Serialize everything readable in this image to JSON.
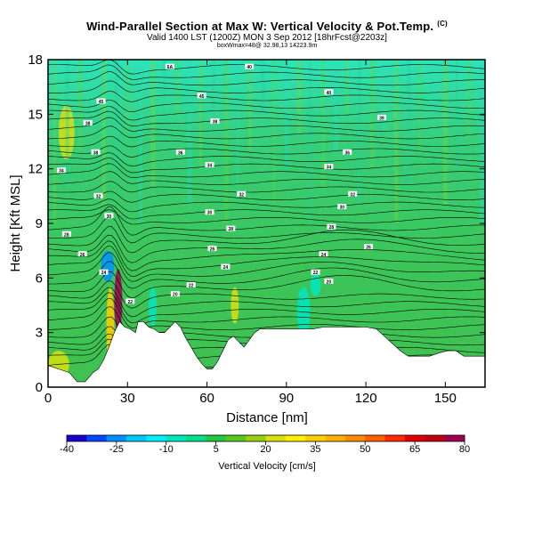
{
  "header": {
    "title": "Wind-Parallel Section at Max W: Vertical Velocity & Pot.Temp.",
    "copyright": "(C)",
    "valid_line": "Valid 1400 LST (1200Z) MON 3 Sep 2012 [18hrFcst@2203z]",
    "box_line": "boxWmax=48@ 32.98,13 14223.9m"
  },
  "chart_data": {
    "type": "heatmap",
    "title": "Wind-Parallel Section at Max W: Vertical Velocity & Pot.Temp.",
    "xlabel": "Distance [nm]",
    "ylabel": "Height [Kft MSL]",
    "xlim": [
      0,
      165
    ],
    "ylim": [
      0,
      18
    ],
    "xticks": [
      "0",
      "30",
      "60",
      "90",
      "120",
      "150"
    ],
    "xtick_values": [
      0,
      30,
      60,
      90,
      120,
      150
    ],
    "yticks": [
      "0",
      "3",
      "6",
      "9",
      "12",
      "15",
      "18"
    ],
    "ytick_values": [
      0,
      3,
      6,
      9,
      12,
      15,
      18
    ],
    "terrain_kft": [
      [
        0,
        1.2
      ],
      [
        4,
        1.0
      ],
      [
        8,
        0.8
      ],
      [
        11,
        0.3
      ],
      [
        14,
        0.3
      ],
      [
        17,
        0.8
      ],
      [
        19,
        1.0
      ],
      [
        21,
        1.5
      ],
      [
        23,
        2.2
      ],
      [
        25,
        3.0
      ],
      [
        27,
        3.6
      ],
      [
        29,
        3.3
      ],
      [
        31,
        3.2
      ],
      [
        33,
        3.0
      ],
      [
        34,
        3.6
      ],
      [
        36,
        3.6
      ],
      [
        38,
        3.3
      ],
      [
        40,
        3.2
      ],
      [
        42,
        3.0
      ],
      [
        44,
        3.0
      ],
      [
        46,
        3.3
      ],
      [
        48,
        3.6
      ],
      [
        50,
        3.3
      ],
      [
        52,
        2.7
      ],
      [
        54,
        2.2
      ],
      [
        56,
        1.7
      ],
      [
        58,
        1.3
      ],
      [
        60,
        1.0
      ],
      [
        62,
        1.0
      ],
      [
        64,
        1.4
      ],
      [
        66,
        2.0
      ],
      [
        68,
        2.6
      ],
      [
        70,
        2.8
      ],
      [
        72,
        2.5
      ],
      [
        74,
        2.2
      ],
      [
        76,
        2.6
      ],
      [
        78,
        3.0
      ],
      [
        80,
        3.2
      ],
      [
        84,
        3.2
      ],
      [
        88,
        3.2
      ],
      [
        92,
        3.2
      ],
      [
        96,
        3.2
      ],
      [
        100,
        3.2
      ],
      [
        104,
        3.3
      ],
      [
        108,
        3.3
      ],
      [
        112,
        3.3
      ],
      [
        116,
        3.3
      ],
      [
        120,
        3.3
      ],
      [
        124,
        3.2
      ],
      [
        127,
        2.8
      ],
      [
        130,
        2.4
      ],
      [
        133,
        2.0
      ],
      [
        136,
        1.7
      ],
      [
        140,
        1.7
      ],
      [
        144,
        1.7
      ],
      [
        148,
        1.9
      ],
      [
        151,
        2.0
      ],
      [
        154,
        2.0
      ],
      [
        157,
        1.7
      ],
      [
        161,
        1.7
      ],
      [
        165,
        1.7
      ]
    ],
    "vertical_velocity_cells": [
      {
        "x": [
          0,
          8
        ],
        "y": [
          0.5,
          2.0
        ],
        "w": 20
      },
      {
        "x": [
          22,
          25
        ],
        "y": [
          1.0,
          5.5
        ],
        "w": 35
      },
      {
        "x": [
          25,
          28
        ],
        "y": [
          3.0,
          6.5
        ],
        "w": 80
      },
      {
        "x": [
          20,
          25
        ],
        "y": [
          5.8,
          7.5
        ],
        "w": -25
      },
      {
        "x": [
          38,
          41
        ],
        "y": [
          3.3,
          5.5
        ],
        "w": -10
      },
      {
        "x": [
          69,
          72
        ],
        "y": [
          3.5,
          5.5
        ],
        "w": 20
      },
      {
        "x": [
          94,
          99
        ],
        "y": [
          2.8,
          5.5
        ],
        "w": -10
      },
      {
        "x": [
          99,
          103
        ],
        "y": [
          5.0,
          6.2
        ],
        "w": -10
      },
      {
        "x": [
          4,
          10
        ],
        "y": [
          12.5,
          15.5
        ],
        "w": 20
      }
    ],
    "isentrope_labels": [
      {
        "label": "6A",
        "x": 46,
        "y": 17.6
      },
      {
        "label": "40",
        "x": 76,
        "y": 17.6
      },
      {
        "label": "40",
        "x": 106,
        "y": 16.2
      },
      {
        "label": "45",
        "x": 20,
        "y": 15.7
      },
      {
        "label": "45",
        "x": 58,
        "y": 16.0
      },
      {
        "label": "39",
        "x": 126,
        "y": 14.8
      },
      {
        "label": "38",
        "x": 15,
        "y": 14.5
      },
      {
        "label": "38",
        "x": 63,
        "y": 14.6
      },
      {
        "label": "38",
        "x": 18,
        "y": 12.9
      },
      {
        "label": "36",
        "x": 50,
        "y": 12.9
      },
      {
        "label": "36",
        "x": 113,
        "y": 12.9
      },
      {
        "label": "34",
        "x": 61,
        "y": 12.2
      },
      {
        "label": "34",
        "x": 106,
        "y": 12.1
      },
      {
        "label": "34",
        "x": 5,
        "y": 11.9
      },
      {
        "label": "32",
        "x": 19,
        "y": 10.5
      },
      {
        "label": "32",
        "x": 73,
        "y": 10.6
      },
      {
        "label": "32",
        "x": 115,
        "y": 10.6
      },
      {
        "label": "30",
        "x": 23,
        "y": 9.4
      },
      {
        "label": "30",
        "x": 61,
        "y": 9.6
      },
      {
        "label": "30",
        "x": 111,
        "y": 9.9
      },
      {
        "label": "28",
        "x": 7,
        "y": 8.4
      },
      {
        "label": "28",
        "x": 69,
        "y": 8.7
      },
      {
        "label": "28",
        "x": 107,
        "y": 8.8
      },
      {
        "label": "26",
        "x": 13,
        "y": 7.3
      },
      {
        "label": "26",
        "x": 62,
        "y": 7.6
      },
      {
        "label": "26",
        "x": 121,
        "y": 7.7
      },
      {
        "label": "24",
        "x": 21,
        "y": 6.3
      },
      {
        "label": "24",
        "x": 67,
        "y": 6.6
      },
      {
        "label": "24",
        "x": 104,
        "y": 7.3
      },
      {
        "label": "22",
        "x": 31,
        "y": 4.7
      },
      {
        "label": "22",
        "x": 54,
        "y": 5.6
      },
      {
        "label": "22",
        "x": 101,
        "y": 6.3
      },
      {
        "label": "20",
        "x": 48,
        "y": 5.1
      },
      {
        "label": "20",
        "x": 106,
        "y": 5.8
      }
    ],
    "colorbar": {
      "title": "Vertical Velocity [cm/s]",
      "range": [
        -40,
        80
      ],
      "tick_labels": [
        "-40",
        "-25",
        "-10",
        "5",
        "20",
        "35",
        "50",
        "65",
        "80"
      ],
      "tick_values": [
        -40,
        -25,
        -10,
        5,
        20,
        35,
        50,
        65,
        80
      ],
      "colors": [
        "#1800d0",
        "#0047ff",
        "#0090ff",
        "#00c8ff",
        "#00f0ff",
        "#00e8c0",
        "#00e08a",
        "#22c840",
        "#55c820",
        "#98d010",
        "#d8e010",
        "#fff000",
        "#ffd000",
        "#ffb000",
        "#ff8c00",
        "#ff6000",
        "#ff2a00",
        "#e00000",
        "#c00010",
        "#a00050"
      ]
    }
  }
}
